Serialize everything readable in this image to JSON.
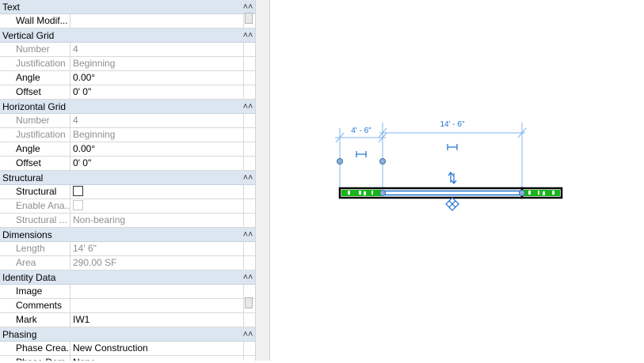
{
  "properties": {
    "rows": [
      {
        "kind": "group",
        "title": "Text",
        "chevron": "collapse-icon"
      },
      {
        "kind": "prop",
        "label": "Wall Modif...",
        "value": ""
      },
      {
        "kind": "group",
        "title": "Vertical Grid",
        "chevron": "collapse-icon"
      },
      {
        "kind": "prop",
        "label": "Number",
        "value": "4",
        "disabled": true
      },
      {
        "kind": "prop",
        "label": "Justification",
        "value": "Beginning",
        "disabled": true
      },
      {
        "kind": "prop",
        "label": "Angle",
        "value": "0.00°"
      },
      {
        "kind": "prop",
        "label": "Offset",
        "value": "0'  0\""
      },
      {
        "kind": "group",
        "title": "Horizontal Grid",
        "chevron": "collapse-icon"
      },
      {
        "kind": "prop",
        "label": "Number",
        "value": "4",
        "disabled": true
      },
      {
        "kind": "prop",
        "label": "Justification",
        "value": "Beginning",
        "disabled": true
      },
      {
        "kind": "prop",
        "label": "Angle",
        "value": "0.00°"
      },
      {
        "kind": "prop",
        "label": "Offset",
        "value": "0'  0\""
      },
      {
        "kind": "group",
        "title": "Structural",
        "chevron": "collapse-icon"
      },
      {
        "kind": "prop",
        "label": "Structural",
        "checkbox": true,
        "checked": false
      },
      {
        "kind": "prop",
        "label": "Enable Ana...",
        "checkbox": true,
        "checked": false,
        "disabled": true
      },
      {
        "kind": "prop",
        "label": "Structural ...",
        "value": "Non-bearing",
        "disabled": true
      },
      {
        "kind": "group",
        "title": "Dimensions",
        "chevron": "collapse-icon"
      },
      {
        "kind": "prop",
        "label": "Length",
        "value": "14'  6\"",
        "disabled": true
      },
      {
        "kind": "prop",
        "label": "Area",
        "value": "290.00 SF",
        "disabled": true
      },
      {
        "kind": "group",
        "title": "Identity Data",
        "chevron": "collapse-icon"
      },
      {
        "kind": "prop",
        "label": "Image",
        "value": ""
      },
      {
        "kind": "prop",
        "label": "Comments",
        "value": ""
      },
      {
        "kind": "prop",
        "label": "Mark",
        "value": "IW1"
      },
      {
        "kind": "group",
        "title": "Phasing",
        "chevron": "collapse-icon"
      },
      {
        "kind": "prop",
        "label": "Phase Crea...",
        "value": "New Construction"
      },
      {
        "kind": "prop",
        "label": "Phase Dem...",
        "value": "None"
      }
    ]
  },
  "canvas": {
    "dim_left": "4' - 6\"",
    "dim_right": "14' - 6\"",
    "colors": {
      "selection": "#1f6fd1",
      "dimension": "#7fb6ec",
      "hatch": "#18b51b",
      "wall": "#000000"
    },
    "icons": [
      "dimension-handle-icon",
      "flip-arrows-icon",
      "move-handle-icon",
      "grip-dot-icon"
    ]
  }
}
